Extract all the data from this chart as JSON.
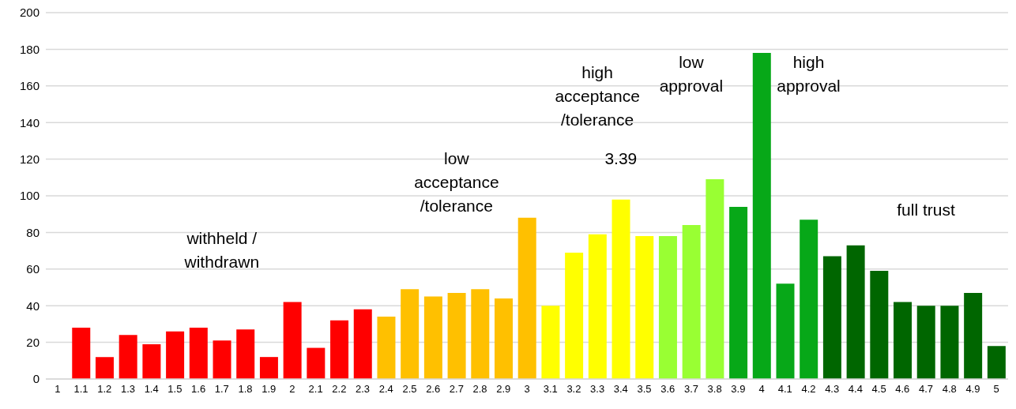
{
  "chart_data": {
    "type": "bar",
    "categories": [
      "1",
      "1.1",
      "1.2",
      "1.3",
      "1.4",
      "1.5",
      "1.6",
      "1.7",
      "1.8",
      "1.9",
      "2",
      "2.1",
      "2.2",
      "2.3",
      "2.4",
      "2.5",
      "2.6",
      "2.7",
      "2.8",
      "2.9",
      "3",
      "3.1",
      "3.2",
      "3.3",
      "3.4",
      "3.5",
      "3.6",
      "3.7",
      "3.8",
      "3.9",
      "4",
      "4.1",
      "4.2",
      "4.3",
      "4.4",
      "4.5",
      "4.6",
      "4.7",
      "4.8",
      "4.9",
      "5"
    ],
    "values": [
      null,
      28,
      12,
      24,
      19,
      26,
      28,
      21,
      27,
      12,
      42,
      17,
      32,
      38,
      34,
      49,
      45,
      47,
      49,
      44,
      88,
      40,
      69,
      79,
      98,
      78,
      78,
      84,
      109,
      94,
      178,
      52,
      87,
      67,
      73,
      59,
      42,
      40,
      40,
      47,
      18
    ],
    "colors": [
      "#ff0000",
      "#ff0000",
      "#ff0000",
      "#ff0000",
      "#ff0000",
      "#ff0000",
      "#ff0000",
      "#ff0000",
      "#ff0000",
      "#ff0000",
      "#ff0000",
      "#ff0000",
      "#ff0000",
      "#ff0000",
      "#ffc000",
      "#ffc000",
      "#ffc000",
      "#ffc000",
      "#ffc000",
      "#ffc000",
      "#ffc000",
      "#ffff00",
      "#ffff00",
      "#ffff00",
      "#ffff00",
      "#ffff00",
      "#99ff33",
      "#99ff33",
      "#99ff33",
      "#07a818",
      "#07a818",
      "#07a818",
      "#07a818",
      "#006600",
      "#006600",
      "#006600",
      "#006600",
      "#006600",
      "#006600",
      "#006600",
      "#006600"
    ],
    "ylim": [
      0,
      200
    ],
    "yticks": [
      0,
      20,
      40,
      60,
      80,
      100,
      120,
      140,
      160,
      180,
      200
    ],
    "grid": "y",
    "legend": false,
    "annotations": [
      "withheld /\nwithdrawn",
      "low\nacceptance\n/tolerance",
      "high\nacceptance\n/tolerance",
      "3.39",
      "low\napproval",
      "high\napproval",
      "full trust"
    ]
  }
}
